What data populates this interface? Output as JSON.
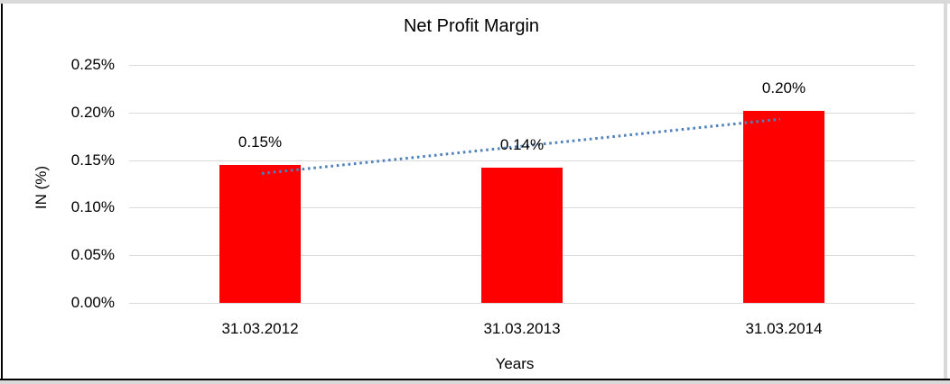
{
  "window": {
    "background": "#ffffff",
    "frame_border_color": "#000000",
    "outer_gap_color": "#d9d9d9"
  },
  "chart_data": {
    "type": "bar",
    "title": "Net Profit Margin",
    "xlabel": "Years",
    "ylabel": "IN (%)",
    "categories": [
      "31.03.2012",
      "31.03.2013",
      "31.03.2014"
    ],
    "values": [
      0.1453,
      0.1423,
      0.2017
    ],
    "data_labels": [
      "0.15%",
      "0.14%",
      "0.20%"
    ],
    "y_ticks": [
      {
        "value": 0.25,
        "label": "0.25%"
      },
      {
        "value": 0.2,
        "label": "0.20%"
      },
      {
        "value": 0.15,
        "label": "0.15%"
      },
      {
        "value": 0.1,
        "label": "0.10%"
      },
      {
        "value": 0.05,
        "label": "0.05%"
      },
      {
        "value": 0.0,
        "label": "0.00%"
      }
    ],
    "ylim": [
      0,
      0.25
    ],
    "grid": true,
    "legend": "none",
    "bar_color": "#ff0000",
    "gridline_color": "#d9d9d9",
    "text_color": "#000000",
    "trendline": {
      "type": "linear",
      "style": "dotted",
      "color": "#4f81bd",
      "start_value": 0.136,
      "end_value": 0.193
    }
  }
}
